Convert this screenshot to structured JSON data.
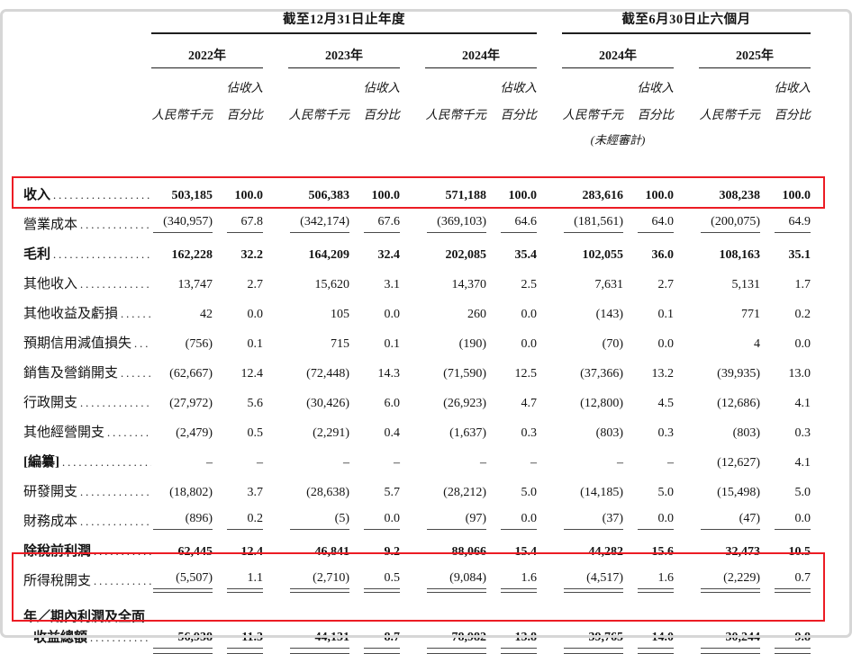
{
  "ui": {
    "leader": "................................................",
    "dash": "–",
    "accent_red": "#ec1c24",
    "rule_color": "#4a4a4a",
    "frame_color": "#d6d6d6"
  },
  "header": {
    "annual_title": "截至12月31日止年度",
    "interim_title": "截至6月30日止六個月",
    "years": [
      "2022年",
      "2023年",
      "2024年",
      "2024年",
      "2025年"
    ],
    "currency_label": "人民幣千元",
    "pct_label_1": "佔收入",
    "pct_label_2": "百分比",
    "unaudited": "(未經審計)"
  },
  "rows": [
    {
      "label": "收入",
      "values": [
        "503,185",
        "100.0",
        "506,383",
        "100.0",
        "571,188",
        "100.0",
        "283,616",
        "100.0",
        "308,238",
        "100.0"
      ]
    },
    {
      "label": "營業成本",
      "values": [
        "(340,957)",
        "67.8",
        "(342,174)",
        "67.6",
        "(369,103)",
        "64.6",
        "(181,561)",
        "64.0",
        "(200,075)",
        "64.9"
      ]
    },
    {
      "label": "毛利",
      "values": [
        "162,228",
        "32.2",
        "164,209",
        "32.4",
        "202,085",
        "35.4",
        "102,055",
        "36.0",
        "108,163",
        "35.1"
      ]
    },
    {
      "label": "其他收入",
      "values": [
        "13,747",
        "2.7",
        "15,620",
        "3.1",
        "14,370",
        "2.5",
        "7,631",
        "2.7",
        "5,131",
        "1.7"
      ]
    },
    {
      "label": "其他收益及虧損",
      "values": [
        "42",
        "0.0",
        "105",
        "0.0",
        "260",
        "0.0",
        "(143)",
        "0.1",
        "771",
        "0.2"
      ]
    },
    {
      "label": "預期信用減值損失",
      "values": [
        "(756)",
        "0.1",
        "715",
        "0.1",
        "(190)",
        "0.0",
        "(70)",
        "0.0",
        "4",
        "0.0"
      ]
    },
    {
      "label": "銷售及營銷開支",
      "values": [
        "(62,667)",
        "12.4",
        "(72,448)",
        "14.3",
        "(71,590)",
        "12.5",
        "(37,366)",
        "13.2",
        "(39,935)",
        "13.0"
      ]
    },
    {
      "label": "行政開支",
      "values": [
        "(27,972)",
        "5.6",
        "(30,426)",
        "6.0",
        "(26,923)",
        "4.7",
        "(12,800)",
        "4.5",
        "(12,686)",
        "4.1"
      ]
    },
    {
      "label": "其他經營開支",
      "values": [
        "(2,479)",
        "0.5",
        "(2,291)",
        "0.4",
        "(1,637)",
        "0.3",
        "(803)",
        "0.3",
        "(803)",
        "0.3"
      ]
    },
    {
      "label": "[編纂]",
      "values": [
        "–",
        "–",
        "–",
        "–",
        "–",
        "–",
        "–",
        "–",
        "(12,627)",
        "4.1"
      ]
    },
    {
      "label": "研發開支",
      "values": [
        "(18,802)",
        "3.7",
        "(28,638)",
        "5.7",
        "(28,212)",
        "5.0",
        "(14,185)",
        "5.0",
        "(15,498)",
        "5.0"
      ]
    },
    {
      "label": "財務成本",
      "values": [
        "(896)",
        "0.2",
        "(5)",
        "0.0",
        "(97)",
        "0.0",
        "(37)",
        "0.0",
        "(47)",
        "0.0"
      ]
    },
    {
      "label": "除稅前利潤",
      "values": [
        "62,445",
        "12.4",
        "46,841",
        "9.2",
        "88,066",
        "15.4",
        "44,282",
        "15.6",
        "32,473",
        "10.5"
      ]
    },
    {
      "label": "所得稅開支",
      "values": [
        "(5,507)",
        "1.1",
        "(2,710)",
        "0.5",
        "(9,084)",
        "1.6",
        "(4,517)",
        "1.6",
        "(2,229)",
        "0.7"
      ]
    },
    {
      "label_line1": "年／期內利潤及全面",
      "label_line2": "收益總額",
      "values": [
        "56,938",
        "11.3",
        "44,131",
        "8.7",
        "78,982",
        "13.8",
        "39,765",
        "14.0",
        "30,244",
        "9.8"
      ]
    }
  ]
}
